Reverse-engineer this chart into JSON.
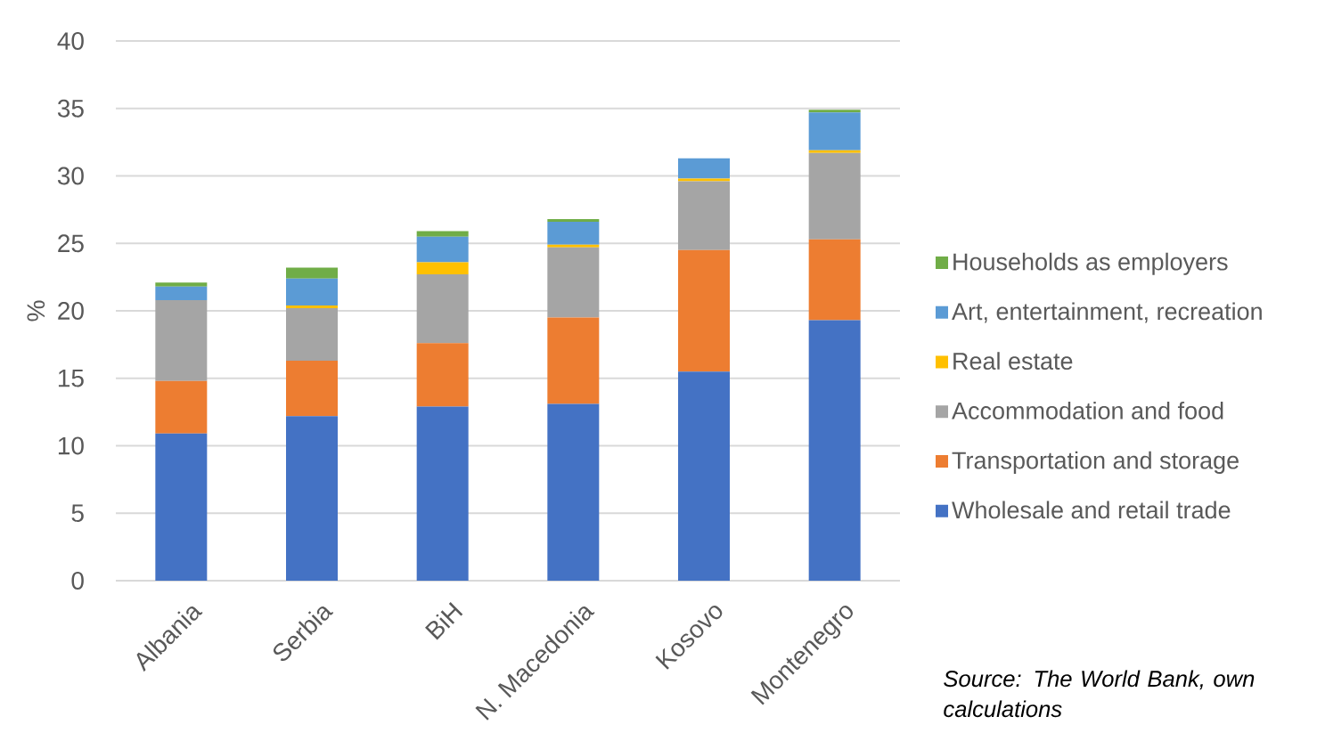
{
  "chart_data": {
    "type": "bar",
    "stacked": true,
    "ylabel": "%",
    "categories": [
      "Albania",
      "Serbia",
      "BiH",
      "N. Macedonia",
      "Kosovo",
      "Montenegro"
    ],
    "series": [
      {
        "name": "Wholesale and retail trade",
        "color": "#4472c4",
        "values": [
          10.9,
          12.2,
          12.9,
          13.1,
          15.5,
          19.3
        ]
      },
      {
        "name": "Transportation and storage",
        "color": "#ed7d31",
        "values": [
          3.9,
          4.1,
          4.7,
          6.4,
          9.0,
          6.0
        ]
      },
      {
        "name": "Accommodation and food",
        "color": "#a5a5a5",
        "values": [
          6.0,
          3.9,
          5.1,
          5.2,
          5.1,
          6.4
        ]
      },
      {
        "name": "Real estate",
        "color": "#ffc000",
        "values": [
          0,
          0.2,
          0.9,
          0.2,
          0.2,
          0.2
        ]
      },
      {
        "name": "Art, entertainment, recreation",
        "color": "#5b9bd5",
        "values": [
          1.0,
          2.0,
          1.9,
          1.7,
          1.5,
          2.8
        ]
      },
      {
        "name": "Households as employers",
        "color": "#70ad47",
        "values": [
          0.3,
          0.8,
          0.4,
          0.2,
          0,
          0.2
        ]
      }
    ],
    "ylim": [
      0,
      40
    ],
    "yticks": [
      0,
      5,
      10,
      15,
      20,
      25,
      30,
      35,
      40
    ],
    "grid": "y",
    "legend": "right",
    "annotations": [
      "Source: The World Bank, own calculations"
    ]
  }
}
